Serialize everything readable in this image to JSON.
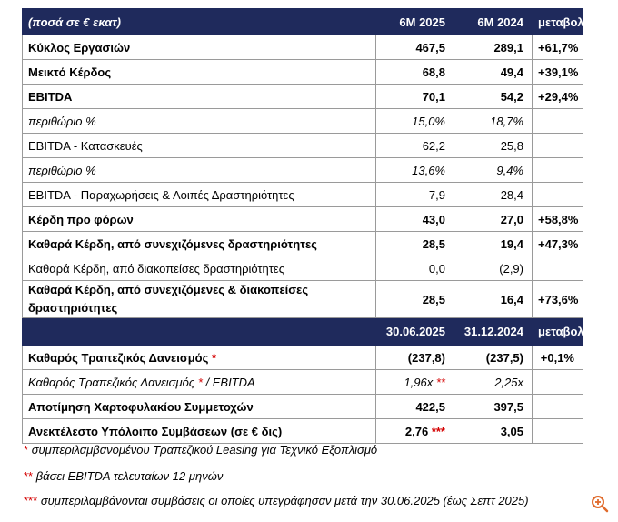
{
  "header1": {
    "label": "(ποσά σε € εκατ)",
    "col1": "6Μ 2025",
    "col2": "6Μ 2024",
    "col3": "μεταβολή"
  },
  "rows1": [
    {
      "label": "Κύκλος Εργασιών",
      "v1": "467,5",
      "v2": "289,1",
      "v3": "+61,7%"
    },
    {
      "label": "Μεικτό Κέρδος",
      "v1": "68,8",
      "v2": "49,4",
      "v3": "+39,1%"
    },
    {
      "label": "EBITDA",
      "v1": "70,1",
      "v2": "54,2",
      "v3": "+29,4%"
    },
    {
      "label": "περιθώριο %",
      "v1": "15,0%",
      "v2": "18,7%",
      "v3": ""
    },
    {
      "label": "EBITDA - Κατασκευές",
      "v1": "62,2",
      "v2": "25,8",
      "v3": ""
    },
    {
      "label": "περιθώριο %",
      "v1": "13,6%",
      "v2": "9,4%",
      "v3": ""
    },
    {
      "label": "EBITDA - Παραχωρήσεις & Λοιπές Δραστηριότητες",
      "v1": "7,9",
      "v2": "28,4",
      "v3": ""
    },
    {
      "label": "Κέρδη προ φόρων",
      "v1": "43,0",
      "v2": "27,0",
      "v3": "+58,8%"
    },
    {
      "label": "Καθαρά Κέρδη, από συνεχιζόμενες δραστηριότητες",
      "v1": "28,5",
      "v2": "19,4",
      "v3": "+47,3%"
    },
    {
      "label": "Καθαρά Κέρδη, από διακοπείσες δραστηριότητες",
      "v1": "0,0",
      "v2": "(2,9)",
      "v3": ""
    },
    {
      "label": "Καθαρά Κέρδη, από συνεχιζόμενες & διακοπείσες δραστηριότητες",
      "v1": "28,5",
      "v2": "16,4",
      "v3": "+73,6%"
    }
  ],
  "header2": {
    "col1": "30.06.2025",
    "col2": "31.12.2024",
    "col3": "μεταβολή"
  },
  "rows2": [
    {
      "label": "Καθαρός Τραπεζικός Δανεισμός",
      "mark": "*",
      "v1": "(237,8)",
      "v1_mark": "",
      "v2": "(237,5)",
      "v3": "+0,1%"
    },
    {
      "label": "Καθαρός Τραπεζικός Δανεισμός",
      "mark": "*",
      "label_suffix": "/ EBITDA",
      "v1": "1,96x",
      "v1_mark": "**",
      "v2": "2,25x",
      "v3": ""
    },
    {
      "label": "Αποτίμηση Χαρτοφυλακίου Συμμετοχών",
      "v1": "422,5",
      "v2": "397,5",
      "v3": ""
    },
    {
      "label": "Ανεκτέλεστο Υπόλοιπο Συμβάσεων (σε € δις)",
      "v1": "2,76",
      "v1_mark": "***",
      "v2": "3,05",
      "v3": ""
    }
  ],
  "notes": [
    {
      "mark": "*",
      "text": "συμπεριλαμβανομένου Τραπεζικού Leasing για Τεχνικό Εξοπλισμό"
    },
    {
      "mark": "**",
      "text": "βάσει EBITDA τελευταίων 12 μηνών"
    },
    {
      "mark": "***",
      "text": "συμπεριλαμβάνονται συμβάσεις οι οποίες υπεγράφησαν μετά την 30.06.2025 (έως Σεπτ 2025)"
    }
  ],
  "colors": {
    "header_bg": "#1f2a5c",
    "marker": "#d40000",
    "border": "#9a9a9a"
  },
  "icons": {
    "zoom": "zoom-in-icon"
  }
}
